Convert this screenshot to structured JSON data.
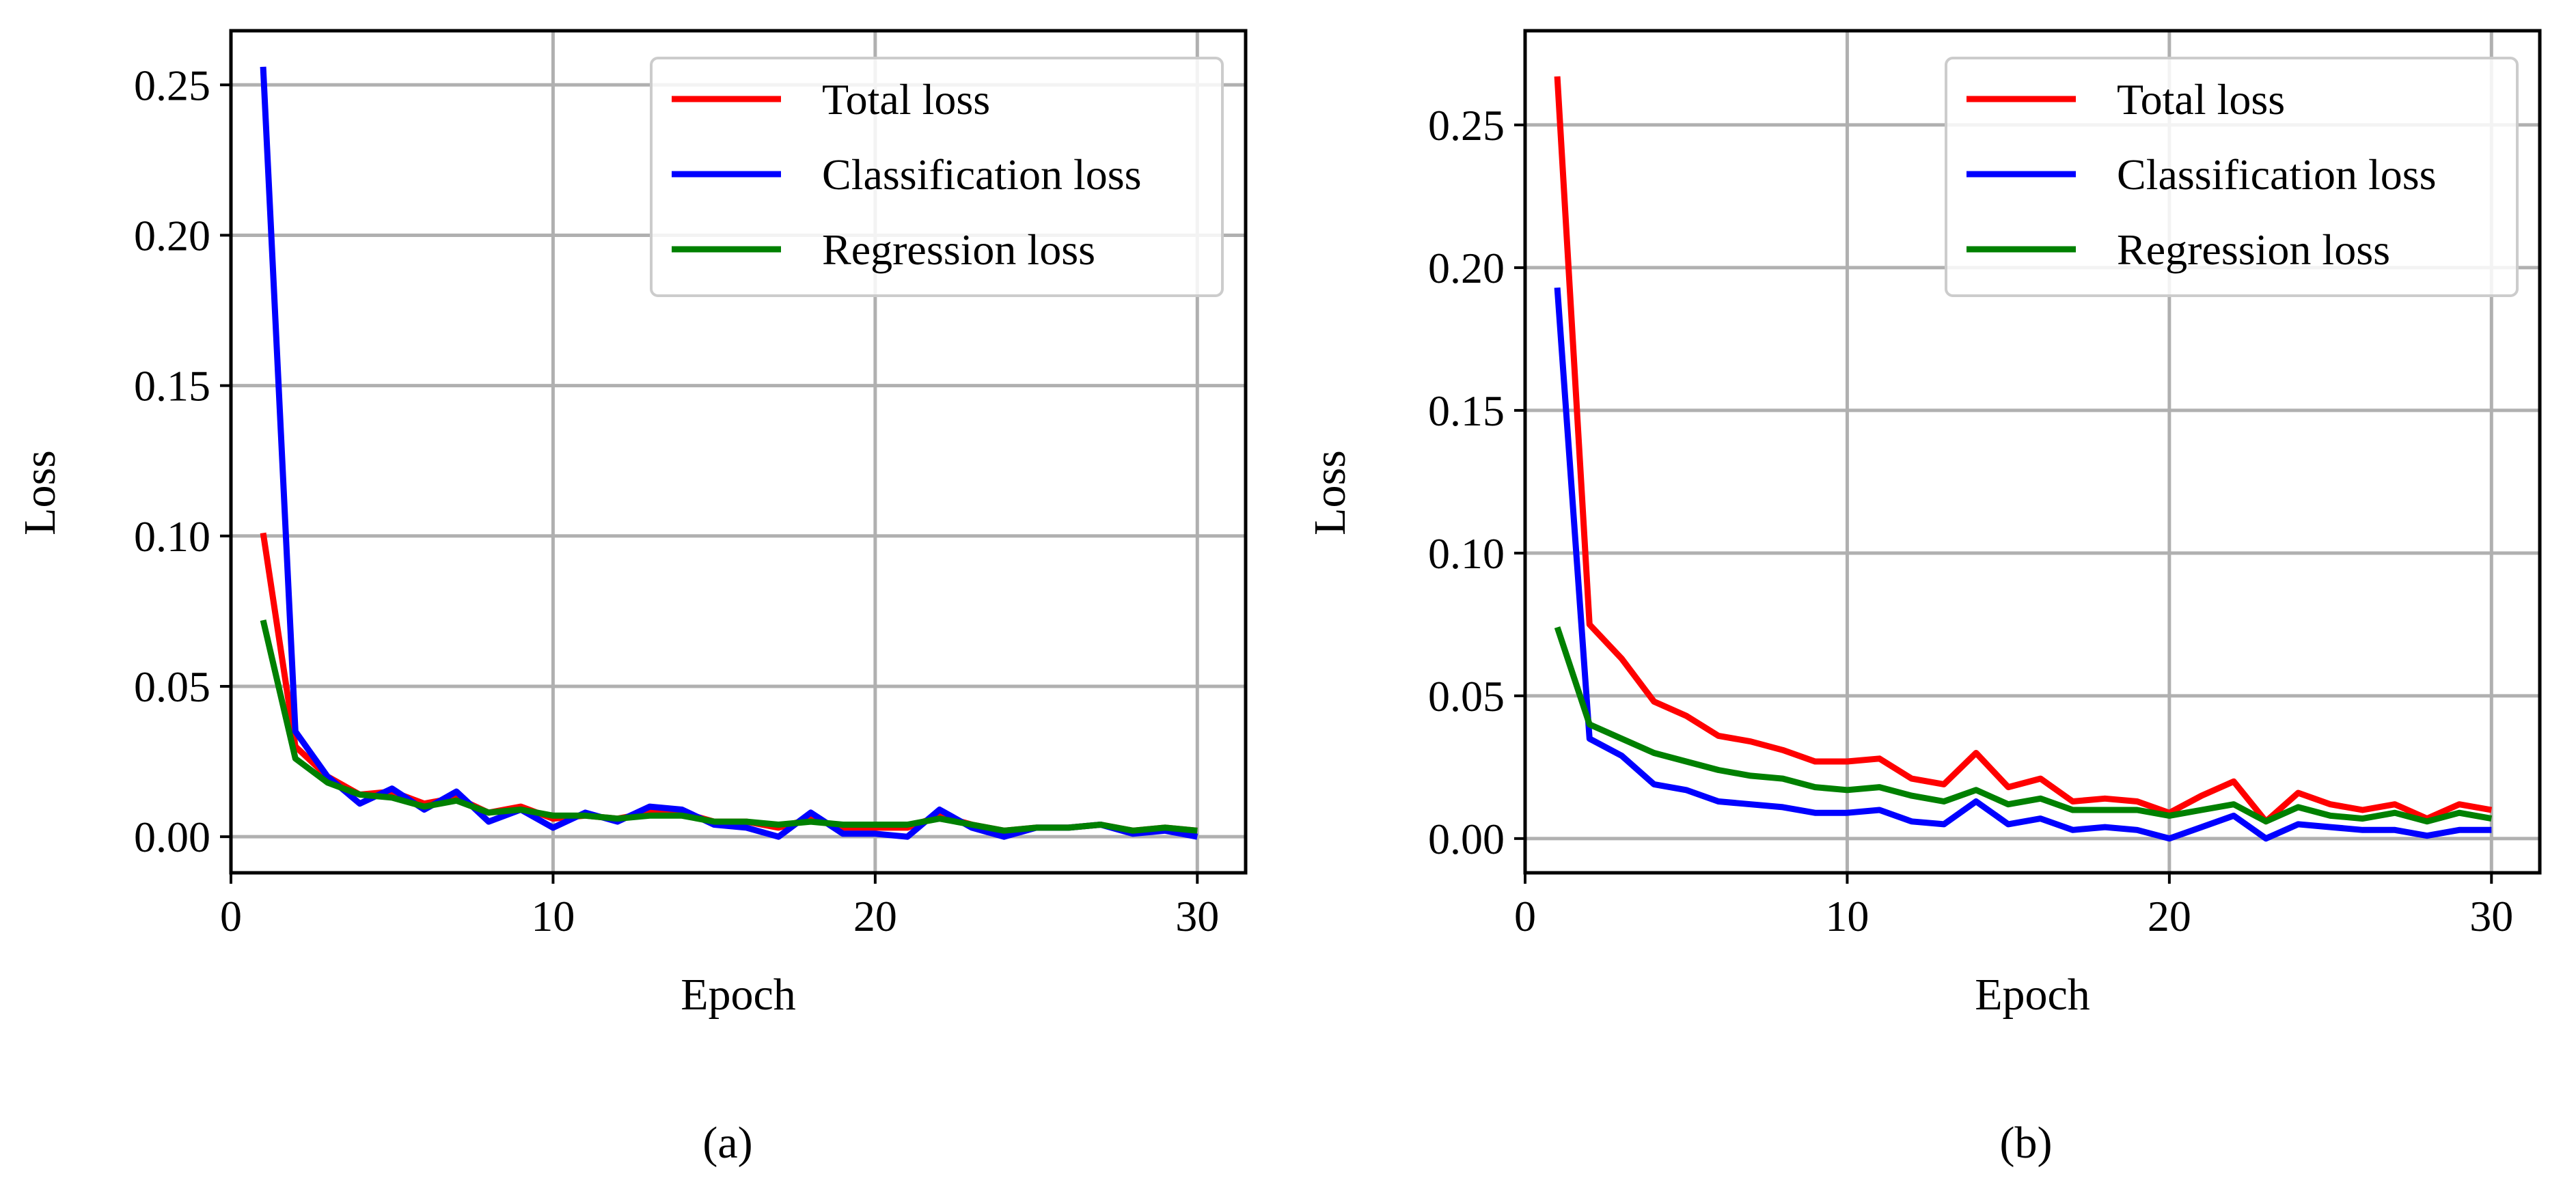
{
  "colors": {
    "total": "#ff0000",
    "classification": "#0000ff",
    "regression": "#008000",
    "grid": "#b0b0b0"
  },
  "chart_data": [
    {
      "type": "line",
      "caption": "(a)",
      "xlabel": "Epoch",
      "ylabel": "Loss",
      "xlim": [
        0,
        31.5
      ],
      "ylim": [
        -0.012,
        0.268
      ],
      "xticks": [
        0,
        10,
        20,
        30
      ],
      "xtick_labels": [
        "0",
        "10",
        "20",
        "30"
      ],
      "yticks": [
        0.0,
        0.05,
        0.1,
        0.15,
        0.2,
        0.25
      ],
      "ytick_labels": [
        "0.00",
        "0.05",
        "0.10",
        "0.15",
        "0.20",
        "0.25"
      ],
      "grid": true,
      "legend_position": "top-right",
      "x": [
        1,
        2,
        3,
        4,
        5,
        6,
        7,
        8,
        9,
        10,
        11,
        12,
        13,
        14,
        15,
        16,
        17,
        18,
        19,
        20,
        21,
        22,
        23,
        24,
        25,
        26,
        27,
        28,
        29,
        30
      ],
      "series": [
        {
          "key": "total",
          "name": "Total loss",
          "values": [
            0.101,
            0.03,
            0.02,
            0.014,
            0.015,
            0.011,
            0.013,
            0.008,
            0.01,
            0.006,
            0.007,
            0.006,
            0.008,
            0.008,
            0.005,
            0.005,
            0.003,
            0.006,
            0.003,
            0.003,
            0.003,
            0.007,
            0.004,
            0.002,
            0.003,
            0.003,
            0.004,
            0.002,
            0.003,
            0.002
          ]
        },
        {
          "key": "classification",
          "name": "Classification loss",
          "values": [
            0.256,
            0.035,
            0.02,
            0.011,
            0.016,
            0.009,
            0.015,
            0.005,
            0.009,
            0.003,
            0.008,
            0.005,
            0.01,
            0.009,
            0.004,
            0.003,
            0.0,
            0.008,
            0.001,
            0.001,
            0.0,
            0.009,
            0.003,
            0.0,
            0.003,
            0.003,
            0.004,
            0.001,
            0.002,
            0.0
          ]
        },
        {
          "key": "regression",
          "name": "Regression loss",
          "values": [
            0.072,
            0.026,
            0.018,
            0.014,
            0.013,
            0.01,
            0.012,
            0.008,
            0.009,
            0.007,
            0.007,
            0.006,
            0.007,
            0.007,
            0.005,
            0.005,
            0.004,
            0.005,
            0.004,
            0.004,
            0.004,
            0.006,
            0.004,
            0.002,
            0.003,
            0.003,
            0.004,
            0.002,
            0.003,
            0.002
          ]
        }
      ]
    },
    {
      "type": "line",
      "caption": "(b)",
      "xlabel": "Epoch",
      "ylabel": "Loss",
      "xlim": [
        0,
        31.5
      ],
      "ylim": [
        -0.012,
        0.283
      ],
      "xticks": [
        0,
        10,
        20,
        30
      ],
      "xtick_labels": [
        "0",
        "10",
        "20",
        "30"
      ],
      "yticks": [
        0.0,
        0.05,
        0.1,
        0.15,
        0.2,
        0.25
      ],
      "ytick_labels": [
        "0.00",
        "0.05",
        "0.10",
        "0.15",
        "0.20",
        "0.25"
      ],
      "grid": true,
      "legend_position": "top-right",
      "x": [
        1,
        2,
        3,
        4,
        5,
        6,
        7,
        8,
        9,
        10,
        11,
        12,
        13,
        14,
        15,
        16,
        17,
        18,
        19,
        20,
        21,
        22,
        23,
        24,
        25,
        26,
        27,
        28,
        29,
        30
      ],
      "series": [
        {
          "key": "total",
          "name": "Total loss",
          "values": [
            0.267,
            0.075,
            0.063,
            0.048,
            0.043,
            0.036,
            0.034,
            0.031,
            0.027,
            0.027,
            0.028,
            0.021,
            0.019,
            0.03,
            0.018,
            0.021,
            0.013,
            0.014,
            0.013,
            0.009,
            0.015,
            0.02,
            0.006,
            0.016,
            0.012,
            0.01,
            0.012,
            0.007,
            0.012,
            0.01
          ]
        },
        {
          "key": "classification",
          "name": "Classification loss",
          "values": [
            0.193,
            0.035,
            0.029,
            0.019,
            0.017,
            0.013,
            0.012,
            0.011,
            0.009,
            0.009,
            0.01,
            0.006,
            0.005,
            0.013,
            0.005,
            0.007,
            0.003,
            0.004,
            0.003,
            0.0,
            0.004,
            0.008,
            0.0,
            0.005,
            0.004,
            0.003,
            0.003,
            0.001,
            0.003,
            0.003
          ]
        },
        {
          "key": "regression",
          "name": "Regression loss",
          "values": [
            0.074,
            0.04,
            0.035,
            0.03,
            0.027,
            0.024,
            0.022,
            0.021,
            0.018,
            0.017,
            0.018,
            0.015,
            0.013,
            0.017,
            0.012,
            0.014,
            0.01,
            0.01,
            0.01,
            0.008,
            0.01,
            0.012,
            0.006,
            0.011,
            0.008,
            0.007,
            0.009,
            0.006,
            0.009,
            0.007
          ]
        }
      ]
    }
  ]
}
